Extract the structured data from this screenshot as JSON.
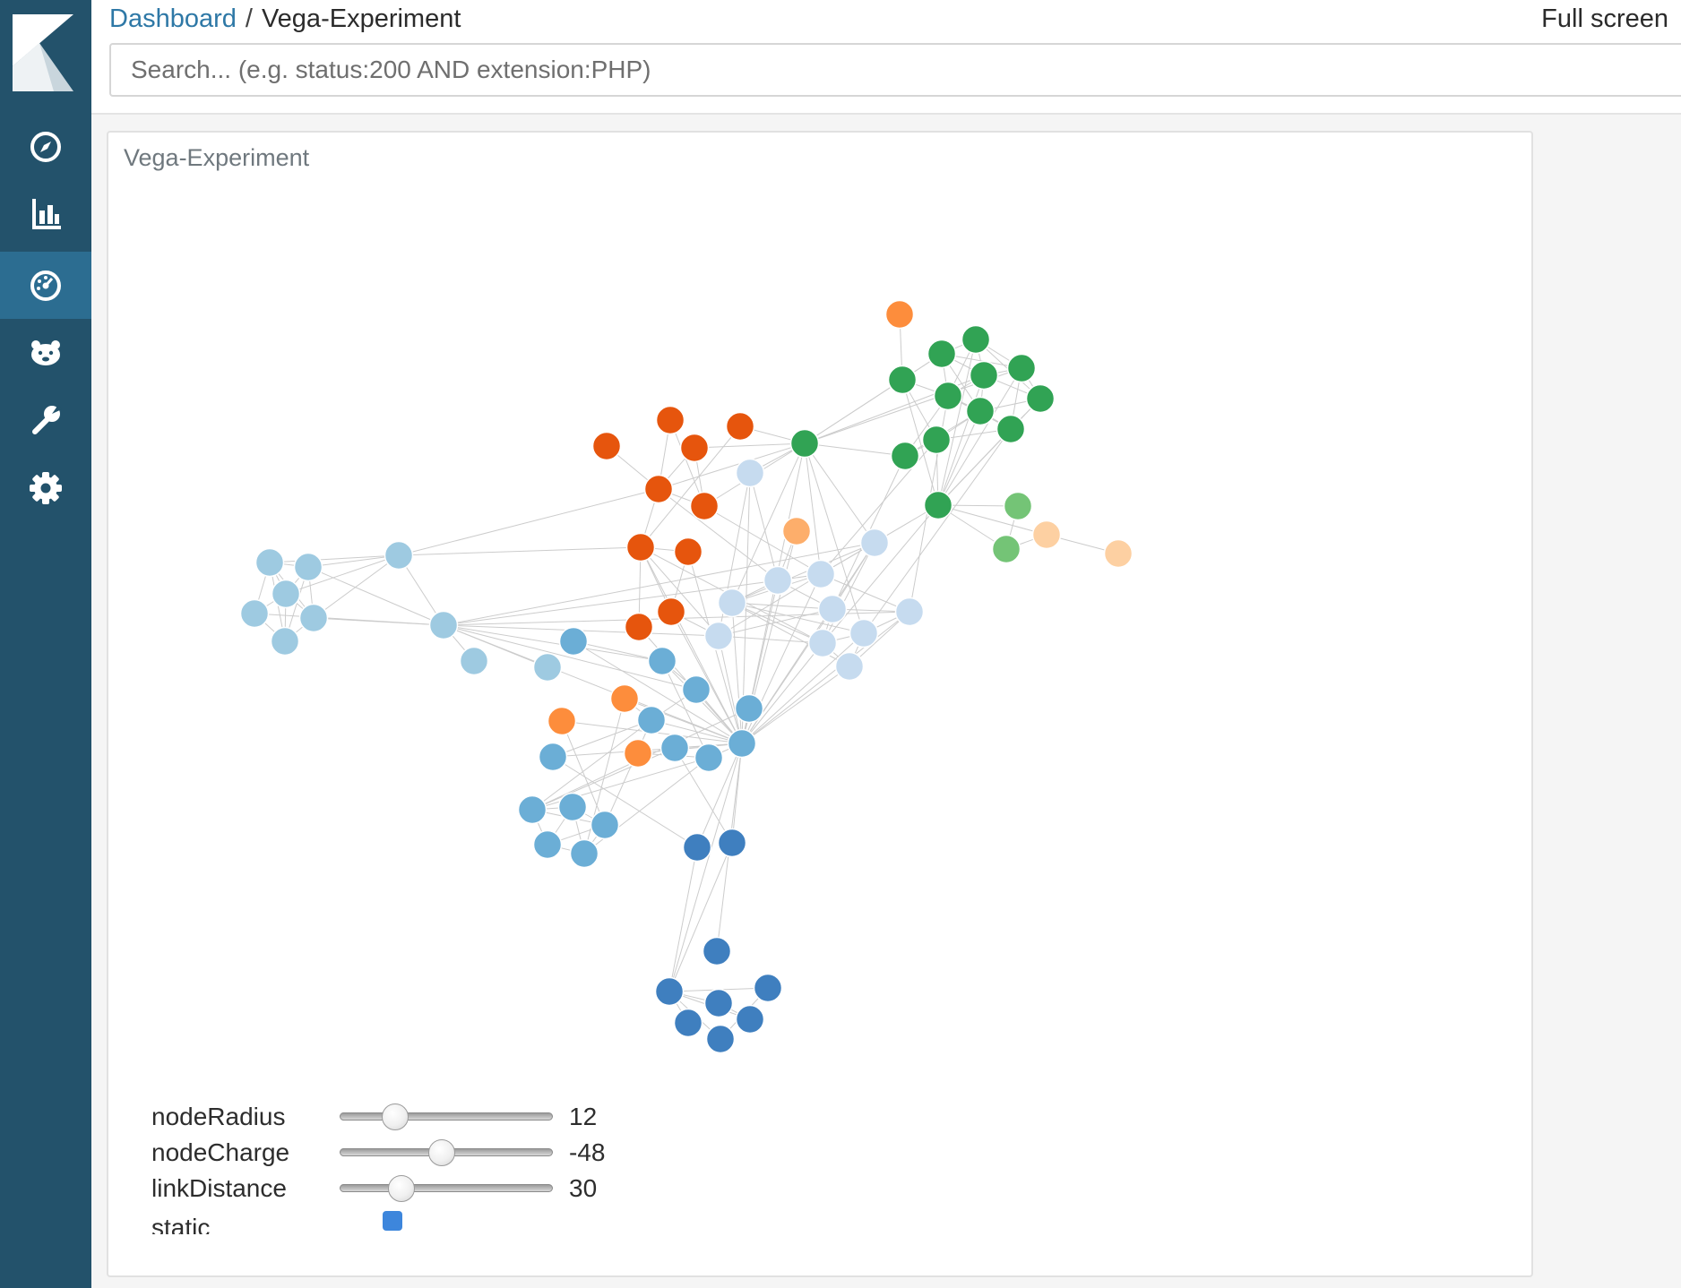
{
  "breadcrumb": {
    "parent": "Dashboard",
    "separator": "/",
    "current": "Vega-Experiment"
  },
  "header": {
    "fullscreen_label": "Full screen"
  },
  "search": {
    "value": "",
    "placeholder": "Search... (e.g. status:200 AND extension:PHP)"
  },
  "sidebar": {
    "items": [
      {
        "icon": "compass-icon",
        "active": false
      },
      {
        "icon": "bar-chart-icon",
        "active": false
      },
      {
        "icon": "dashboard-gauge-icon",
        "active": true
      },
      {
        "icon": "bear-icon",
        "active": false
      },
      {
        "icon": "wrench-icon",
        "active": false
      },
      {
        "icon": "gear-icon",
        "active": false
      }
    ]
  },
  "panel": {
    "title": "Vega-Experiment"
  },
  "controls": {
    "nodeRadius": {
      "label": "nodeRadius",
      "value": "12",
      "fraction": 0.26
    },
    "nodeCharge": {
      "label": "nodeCharge",
      "value": "-48",
      "fraction": 0.48
    },
    "linkDistance": {
      "label": "linkDistance",
      "value": "30",
      "fraction": 0.29
    },
    "static": {
      "label": "static",
      "checked": true
    }
  },
  "graph": {
    "colors": {
      "lightblue": "#9ecae1",
      "midblue": "#6baed6",
      "darkblue": "#3f7fbf",
      "paleblue": "#c6dbef",
      "darkorange": "#e6550d",
      "orange": "#fd8d3c",
      "lightorange": "#fdae6b",
      "paleorange": "#fdd0a2",
      "green": "#31a354",
      "lightgreen": "#74c476",
      "edge": "#cccccc"
    }
  }
}
